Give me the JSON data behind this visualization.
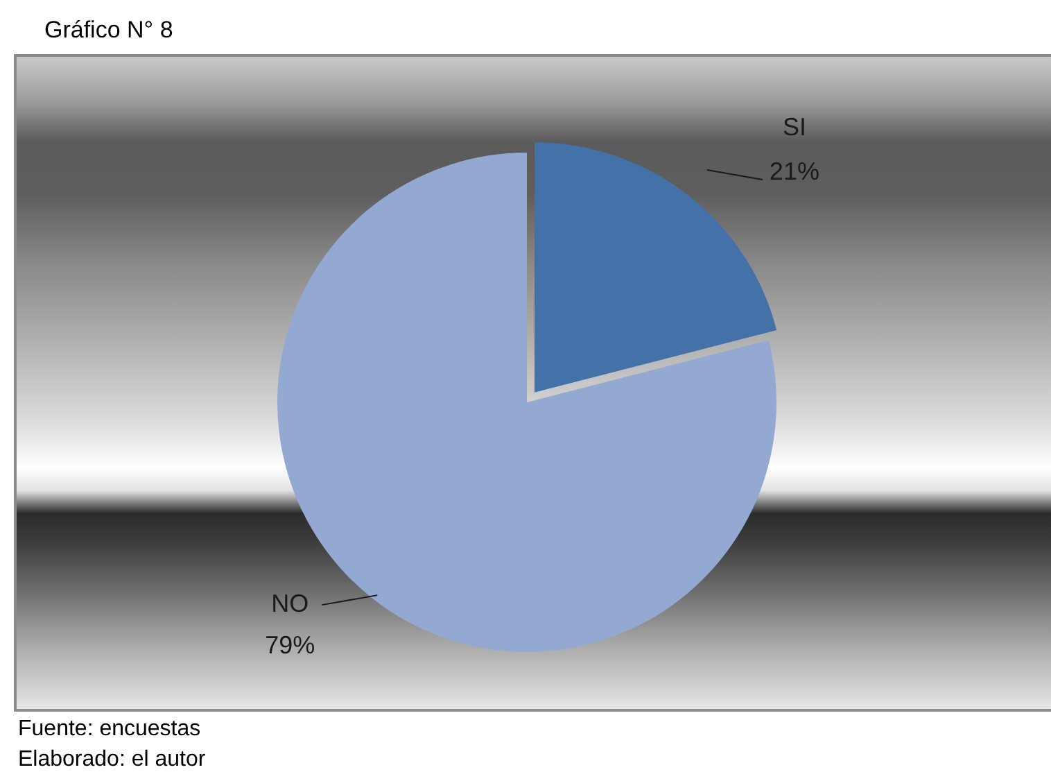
{
  "chart_data": {
    "type": "pie",
    "title": "Gráfico N° 8",
    "categories": [
      "SI",
      "NO"
    ],
    "values": [
      21,
      79
    ],
    "colors": [
      "#4472a8",
      "#94a9d1"
    ],
    "value_labels": [
      "21%",
      "79%"
    ],
    "legend": false,
    "annotations": [
      "Fuente: encuestas",
      "Elaborado: el autor"
    ]
  }
}
